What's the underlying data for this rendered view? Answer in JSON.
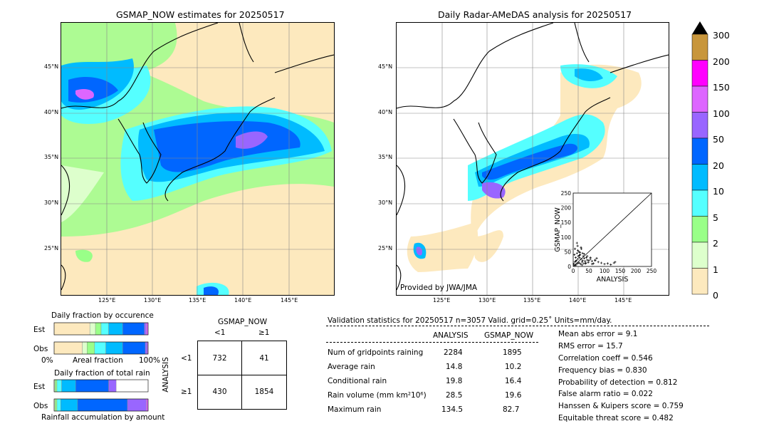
{
  "left_map": {
    "title": "GSMAP_NOW estimates for 20250517",
    "lat_labels": [
      "45°N",
      "40°N",
      "35°N",
      "30°N",
      "25°N"
    ],
    "lon_labels": [
      "125°E",
      "130°E",
      "135°E",
      "140°E",
      "145°E"
    ]
  },
  "right_map": {
    "title": "Daily Radar-AMeDAS analysis for 20250517",
    "credit": "Provided by JWA/JMA",
    "lat_labels": [
      "45°N",
      "40°N",
      "35°N",
      "30°N",
      "25°N"
    ],
    "lon_labels": [
      "125°E",
      "130°E",
      "135°E",
      "140°E",
      "145°E"
    ]
  },
  "colorbar": {
    "labels": [
      "300",
      "200",
      "150",
      "100",
      "50",
      "20",
      "10",
      "5",
      "2",
      "1",
      "0"
    ],
    "colors": [
      "#c8963c",
      "#ff00ff",
      "#dd66ff",
      "#9966ff",
      "#0066ff",
      "#00bbff",
      "#55ffff",
      "#99ff88",
      "#ddffcc",
      "#fde9be"
    ]
  },
  "chart_data": [
    {
      "type": "scatter",
      "xlabel": "ANALYSIS",
      "ylabel": "GSMAP_NOW",
      "xlim": [
        0,
        250
      ],
      "ylim": [
        0,
        250
      ],
      "x_ticks": [
        "0",
        "50",
        "100",
        "150",
        "200",
        "250"
      ],
      "y_ticks": [
        "0",
        "50",
        "100",
        "150",
        "200",
        "250"
      ],
      "x": [
        2,
        4,
        5,
        6,
        8,
        9,
        10,
        12,
        13,
        14,
        15,
        16,
        18,
        19,
        20,
        22,
        24,
        25,
        26,
        28,
        30,
        32,
        34,
        35,
        38,
        40,
        42,
        45,
        48,
        50,
        55,
        60,
        65,
        70,
        75,
        80,
        90,
        100,
        110,
        120,
        130,
        134,
        5,
        8,
        12,
        15,
        18,
        20,
        22,
        25,
        28,
        30,
        35,
        40,
        45,
        55,
        60,
        70
      ],
      "y": [
        8,
        40,
        15,
        60,
        30,
        5,
        20,
        45,
        10,
        70,
        25,
        35,
        50,
        12,
        30,
        40,
        8,
        25,
        60,
        15,
        20,
        35,
        10,
        28,
        18,
        12,
        30,
        22,
        14,
        20,
        25,
        18,
        10,
        22,
        28,
        15,
        12,
        8,
        10,
        6,
        12,
        15,
        3,
        18,
        80,
        55,
        12,
        38,
        48,
        65,
        5,
        45,
        42,
        10,
        35,
        30,
        8,
        20
      ]
    },
    {
      "type": "bar",
      "title": "Daily fraction by occurence",
      "categories": [
        "Est",
        "Obs"
      ],
      "xlabel_left": "0%",
      "xlabel_mid": "Areal fraction",
      "xlabel_right": "100%",
      "colors": [
        "#fde9be",
        "#ddffcc",
        "#99ff88",
        "#55ffff",
        "#00bbff",
        "#0066ff",
        "#9966ff",
        "#dd66ff"
      ],
      "series_fractions": [
        [
          0.38,
          0.06,
          0.06,
          0.08,
          0.15,
          0.23,
          0.02,
          0.02
        ],
        [
          0.3,
          0.05,
          0.08,
          0.12,
          0.18,
          0.24,
          0.02,
          0.01
        ]
      ]
    },
    {
      "type": "bar",
      "title": "Daily fraction of total rain",
      "categories": [
        "Est",
        "Obs"
      ],
      "xlabel": "Rainfall accumulation by amount",
      "colors": [
        "#ddffcc",
        "#99ff88",
        "#55ffff",
        "#00bbff",
        "#0066ff",
        "#9966ff",
        "#dd66ff"
      ],
      "series_fractions": [
        [
          0.01,
          0.02,
          0.05,
          0.15,
          0.35,
          0.08,
          0.0
        ],
        [
          0.01,
          0.02,
          0.04,
          0.18,
          0.53,
          0.2,
          0.02
        ]
      ]
    },
    {
      "type": "table",
      "col_title": "GSMAP_NOW",
      "row_title": "ANALYSIS",
      "col_headers": [
        "<1",
        "≥1"
      ],
      "row_headers": [
        "<1",
        "≥1"
      ],
      "cells": [
        [
          "732",
          "41"
        ],
        [
          "430",
          "1854"
        ]
      ]
    }
  ],
  "stats": {
    "header": "Validation statistics for 20250517  n=3057 Valid. grid=0.25˚ Units=mm/day.",
    "col_analysis": "ANALYSIS",
    "col_gsmap": "GSMAP_NOW",
    "rows": [
      {
        "label": "Num of gridpoints raining",
        "analysis": "2284",
        "gsmap": "1895"
      },
      {
        "label": "Average rain",
        "analysis": "14.8",
        "gsmap": "10.2"
      },
      {
        "label": "Conditional rain",
        "analysis": "19.8",
        "gsmap": "16.4"
      },
      {
        "label": "Rain volume (mm km²10⁶)",
        "analysis": "28.5",
        "gsmap": "19.6"
      },
      {
        "label": "Maximum rain",
        "analysis": "134.5",
        "gsmap": "82.7"
      }
    ],
    "scores": [
      "Mean abs error =    9.1",
      "RMS error =   15.7",
      "Correlation coeff =  0.546",
      "Frequency bias =  0.830",
      "Probability of detection =  0.812",
      "False alarm ratio =  0.022",
      "Hanssen & Kuipers score =  0.759",
      "Equitable threat score =  0.482"
    ]
  }
}
